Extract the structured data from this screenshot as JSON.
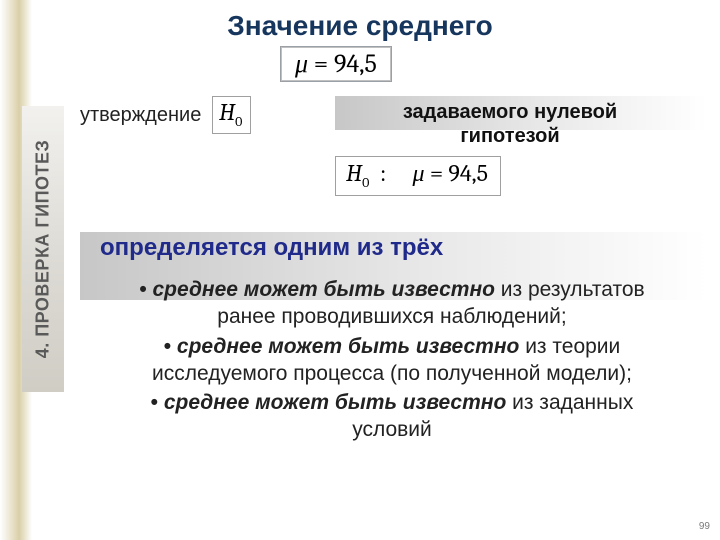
{
  "colors": {
    "title": "#17365d",
    "determined": "#1f2a8a",
    "body": "#222222",
    "page_num": "#7a7a7a",
    "vtab_text": "#595959",
    "left_strip_gradient": [
      "#ffffff",
      "#e8dfc6",
      "#d9cfa8",
      "#ffffff"
    ],
    "gradbar_gradient": [
      "#c7c7c7",
      "#e8e8e8",
      "#ffffff"
    ]
  },
  "title": "Значение среднего",
  "formula_mu": {
    "lhs": "μ",
    "eq": "=",
    "rhs": "94,5"
  },
  "utv_label": "утверждение",
  "h0_label": {
    "H": "H",
    "sub": "0"
  },
  "zadav_text_line1": "задаваемого нулевой",
  "zadav_text_line2": "гипотезой",
  "h0mu": {
    "H": "H",
    "sub": "0",
    "colon": ":",
    "mu": "μ",
    "eq": "=",
    "rhs": "94,5"
  },
  "determined": "определяется одним из трёх",
  "bullets": {
    "b1_bold": "среднее может быть известно",
    "b1_rest": " из результатов ранее проводившихся наблюдений;",
    "b2_bold": "среднее может быть известно",
    "b2_rest": " из теории исследуемого процесса (по полученной модели);",
    "b3_bold": "среднее может быть известно",
    "b3_rest": " из заданных условий"
  },
  "sidebar": "4. ПРОВЕРКА ГИПОТЕЗ",
  "page_number": "99"
}
